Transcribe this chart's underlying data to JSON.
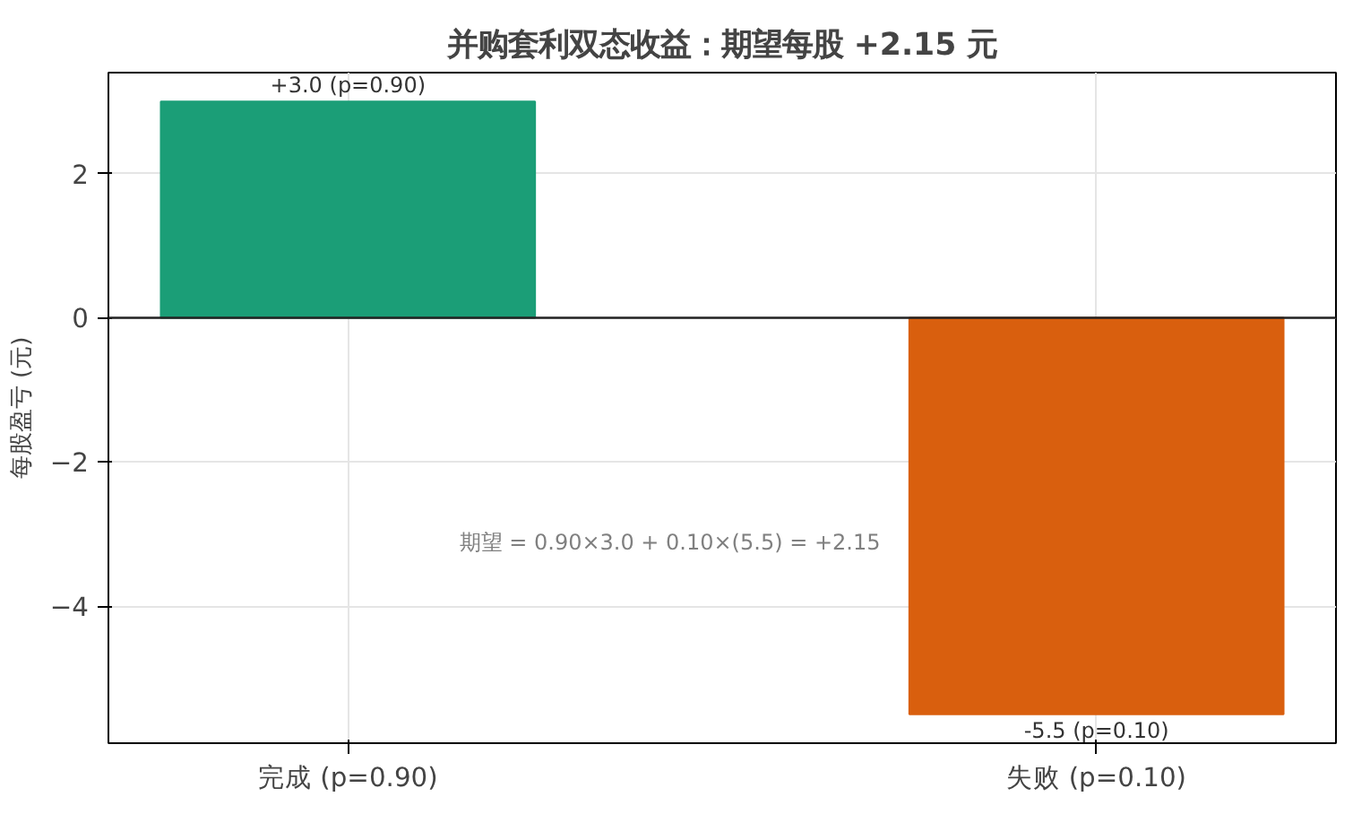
{
  "chart_data": {
    "type": "bar",
    "title": "并购套利双态收益：期望每股 +2.15 元",
    "ylabel": "每股盈亏 (元)",
    "categories": [
      "完成 (p=0.90)",
      "失败 (p=0.10)"
    ],
    "values": [
      3.0,
      -5.5
    ],
    "colors": [
      "#1b9e77",
      "#d95f0e"
    ],
    "value_labels": [
      "+3.0\n(p=0.90)",
      "-5.5\n(p=0.10)"
    ],
    "ylim": [
      -5.9,
      3.4
    ],
    "yticks": [
      -4,
      -2,
      0,
      2
    ],
    "ref_lines": [
      {
        "axis": "y",
        "value": 0,
        "color": "#222222"
      }
    ],
    "annotations": [
      "期望 = 0.90×3.0 + 0.10×(5.5) = +2.15"
    ],
    "grid": true
  }
}
